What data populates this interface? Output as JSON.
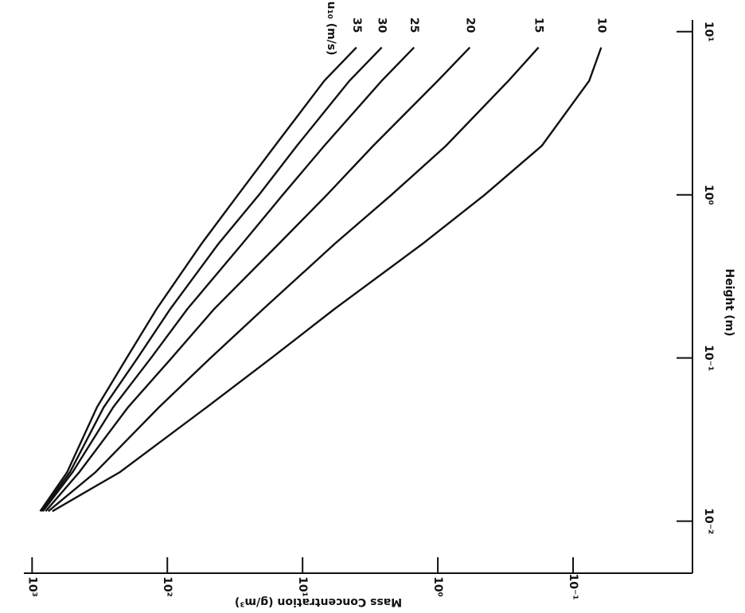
{
  "chart_data": {
    "type": "line",
    "x_label": "Height (m)",
    "y_label": "Mass Concentration (g/m³)",
    "legend_title": "u₁₀ (m/s)",
    "x_log": true,
    "y_log": true,
    "x": [
      0.0115,
      0.02,
      0.05,
      0.1,
      0.2,
      0.5,
      1,
      2,
      5,
      8
    ],
    "series": [
      {
        "name": "35",
        "color": "#111111",
        "values": [
          871,
          550,
          331,
          200,
          120,
          56,
          30,
          16,
          6.9,
          4
        ]
      },
      {
        "name": "30",
        "color": "#111111",
        "values": [
          851,
          525,
          295,
          166,
          95,
          42,
          21,
          11,
          4.5,
          2.6
        ]
      },
      {
        "name": "25",
        "color": "#111111",
        "values": [
          832,
          501,
          251,
          132,
          71,
          28,
          14,
          6.9,
          2.6,
          1.5
        ]
      },
      {
        "name": "20",
        "color": "#111111",
        "values": [
          794,
          447,
          195,
          93,
          45,
          15,
          6.6,
          3,
          1,
          0.58
        ]
      },
      {
        "name": "15",
        "color": "#111111",
        "values": [
          759,
          339,
          115,
          48,
          19.5,
          5.8,
          2.2,
          0.87,
          0.3,
          0.18
        ]
      },
      {
        "name": "10",
        "color": "#111111",
        "values": [
          708,
          224,
          51,
          17,
          5.8,
          1.3,
          0.45,
          0.17,
          0.076,
          0.062
        ]
      }
    ],
    "xlim": [
      0.0048,
      11.8
    ],
    "ylim": [
      0.0131,
      1150
    ],
    "xticks": [
      {
        "value": 0.01,
        "label": "10⁻²"
      },
      {
        "value": 0.1,
        "label": "10⁻¹"
      },
      {
        "value": 1,
        "label": "10⁰"
      },
      {
        "value": 10,
        "label": "10¹"
      }
    ],
    "yticks": [
      {
        "value": 1000,
        "label": "10³"
      },
      {
        "value": 100,
        "label": "10²"
      },
      {
        "value": 10,
        "label": "10¹"
      },
      {
        "value": 1,
        "label": "10⁰"
      },
      {
        "value": 0.1,
        "label": "10⁻¹"
      }
    ]
  }
}
